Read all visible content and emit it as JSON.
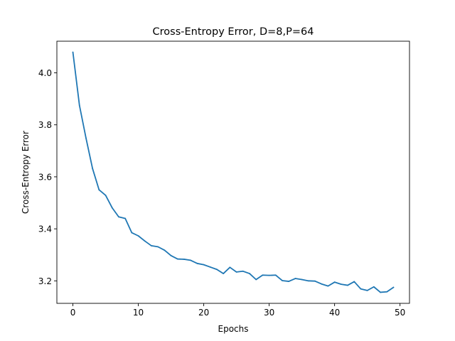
{
  "chart_data": {
    "type": "line",
    "title": "Cross-Entropy Error, D=8,P=64",
    "xlabel": "Epochs",
    "ylabel": "Cross-Entropy Error",
    "xlim": [
      -2.45,
      51.45
    ],
    "ylim": [
      3.1135,
      4.1215
    ],
    "xticks": [
      0,
      10,
      20,
      30,
      40,
      50
    ],
    "yticks": [
      3.2,
      3.4,
      3.6,
      3.8,
      4.0
    ],
    "xtick_labels": [
      "0",
      "10",
      "20",
      "30",
      "40",
      "50"
    ],
    "ytick_labels": [
      "3.2",
      "3.4",
      "3.6",
      "3.8",
      "4.0"
    ],
    "grid": false,
    "series": [
      {
        "color": "#1f77b4",
        "x": [
          0,
          1,
          2,
          3,
          4,
          5,
          6,
          7,
          8,
          9,
          10,
          11,
          12,
          13,
          14,
          15,
          16,
          17,
          18,
          19,
          20,
          21,
          22,
          23,
          24,
          25,
          26,
          27,
          28,
          29,
          30,
          31,
          32,
          33,
          34,
          35,
          36,
          37,
          38,
          39,
          40,
          41,
          42,
          43,
          44,
          45,
          46,
          47,
          48,
          49
        ],
        "values": [
          4.079,
          3.875,
          3.749,
          3.632,
          3.55,
          3.529,
          3.481,
          3.446,
          3.44,
          3.385,
          3.373,
          3.353,
          3.335,
          3.331,
          3.318,
          3.297,
          3.284,
          3.283,
          3.279,
          3.267,
          3.262,
          3.253,
          3.244,
          3.228,
          3.252,
          3.234,
          3.237,
          3.228,
          3.205,
          3.222,
          3.221,
          3.222,
          3.201,
          3.198,
          3.209,
          3.205,
          3.2,
          3.199,
          3.188,
          3.18,
          3.195,
          3.187,
          3.183,
          3.197,
          3.169,
          3.163,
          3.177,
          3.156,
          3.158,
          3.175
        ]
      }
    ]
  }
}
